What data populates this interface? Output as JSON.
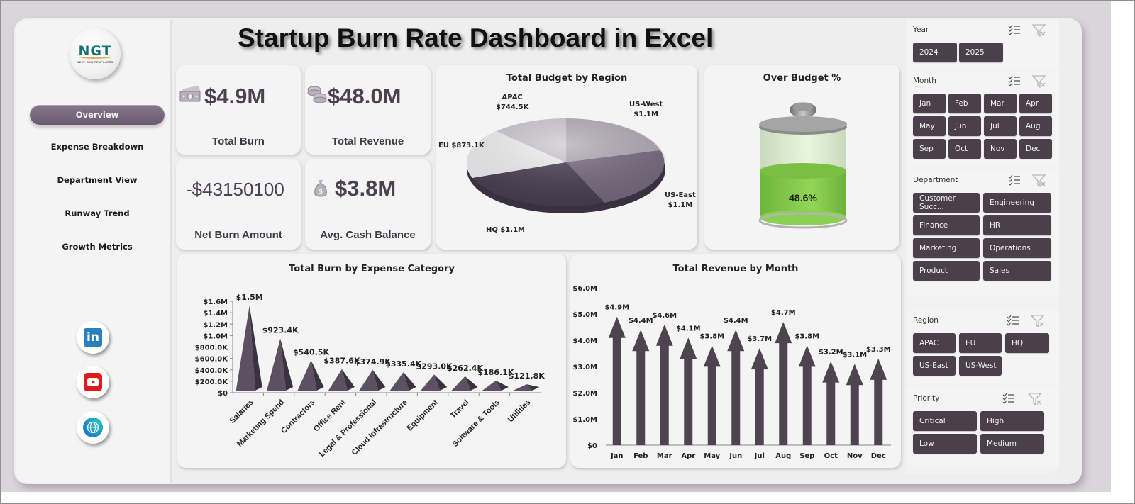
{
  "header": {
    "title": "Startup Burn Rate Dashboard in Excel"
  },
  "logo": {
    "text": "NGT",
    "subtext": "NEXT GEN TEMPLATES"
  },
  "sidebar": {
    "items": [
      {
        "label": "Overview",
        "active": true
      },
      {
        "label": "Expense Breakdown",
        "active": false
      },
      {
        "label": "Department View",
        "active": false
      },
      {
        "label": "Runway Trend",
        "active": false
      },
      {
        "label": "Growth Metrics",
        "active": false
      }
    ],
    "social": [
      {
        "icon": "linkedin-icon",
        "label": "in"
      },
      {
        "icon": "youtube-icon"
      },
      {
        "icon": "globe-icon"
      }
    ]
  },
  "kpis": [
    {
      "value": "$4.9M",
      "label": "Total Burn",
      "icon": "cash-icon"
    },
    {
      "value": "$48.0M",
      "label": "Total Revenue",
      "icon": "coins-icon"
    },
    {
      "value": "-$43150100",
      "label": "Net Burn Amount",
      "icon": ""
    },
    {
      "value": "$3.8M",
      "label": "Avg. Cash Balance",
      "icon": "money-bag-icon"
    }
  ],
  "colors": {
    "accent": "#4c3f4c",
    "accent_light": "#7a6b7e",
    "battery_green": "#7cc242",
    "panel_bg": "#f4f4f4",
    "backdrop": "#d9d6da"
  },
  "slicers": [
    {
      "title": "Year",
      "items": [
        "2024",
        "2025"
      ]
    },
    {
      "title": "Month",
      "items": [
        "Jan",
        "Feb",
        "Mar",
        "Apr",
        "May",
        "Jun",
        "Jul",
        "Aug",
        "Sep",
        "Oct",
        "Nov",
        "Dec"
      ]
    },
    {
      "title": "Department",
      "items": [
        "Customer Succ...",
        "Engineering",
        "Finance",
        "HR",
        "Marketing",
        "Operations",
        "Product",
        "Sales"
      ]
    },
    {
      "title": "Region",
      "items": [
        "APAC",
        "EU",
        "HQ",
        "US-East",
        "US-West"
      ]
    },
    {
      "title": "Priority",
      "items": [
        "Critical",
        "High",
        "Low",
        "Medium"
      ]
    }
  ],
  "chart_data": [
    {
      "type": "pie",
      "title": "Total Budget by Region",
      "categories": [
        "APAC",
        "US-West",
        "US-East",
        "HQ",
        "EU"
      ],
      "values": [
        744500,
        1100000,
        1100000,
        1100000,
        873100
      ],
      "labels": [
        "APAC $744.5K",
        "US-West $1.1M",
        "US-East $1.1M",
        "HQ $1.1M",
        "EU $873.1K"
      ],
      "legend": "none"
    },
    {
      "type": "gauge",
      "title": "Over Budget %",
      "value": 48.6,
      "label": "48.6%"
    },
    {
      "type": "bar",
      "title": "Total Burn by Expense Category",
      "categories": [
        "Salaries",
        "Marketing Spend",
        "Contractors",
        "Office Rent",
        "Legal & Professional",
        "Cloud Infrastructure",
        "Equipment",
        "Travel",
        "Software & Tools",
        "Utilities"
      ],
      "values": [
        1500000,
        923400,
        540500,
        387600,
        374900,
        335400,
        293000,
        262400,
        186100,
        121800
      ],
      "labels": [
        "$1.5M",
        "$923.4K",
        "$540.5K",
        "$387.6K",
        "$374.9K",
        "$335.4K",
        "$293.0K",
        "$262.4K",
        "$186.1K",
        "$121.8K"
      ],
      "yticks": [
        "$0",
        "$200.0K",
        "$400.0K",
        "$600.0K",
        "$800.0K",
        "$1.0M",
        "$1.2M",
        "$1.4M",
        "$1.6M"
      ],
      "ylim": [
        0,
        1600000
      ],
      "xlabel": "",
      "ylabel": "",
      "grid": false
    },
    {
      "type": "bar",
      "title": "Total Revenue by Month",
      "categories": [
        "Jan",
        "Feb",
        "Mar",
        "Apr",
        "May",
        "Jun",
        "Jul",
        "Aug",
        "Sep",
        "Oct",
        "Nov",
        "Dec"
      ],
      "values": [
        4900000,
        4400000,
        4600000,
        4100000,
        3800000,
        4400000,
        3700000,
        4700000,
        3800000,
        3200000,
        3100000,
        3300000
      ],
      "labels": [
        "$4.9M",
        "$4.4M",
        "$4.6M",
        "$4.1M",
        "$3.8M",
        "$4.4M",
        "$3.7M",
        "$4.7M",
        "$3.8M",
        "$3.2M",
        "$3.1M",
        "$3.3M"
      ],
      "yticks": [
        "$0",
        "$1.0M",
        "$2.0M",
        "$3.0M",
        "$4.0M",
        "$5.0M",
        "$6.0M"
      ],
      "ylim": [
        0,
        6000000
      ],
      "xlabel": "",
      "ylabel": "",
      "grid": false
    }
  ]
}
